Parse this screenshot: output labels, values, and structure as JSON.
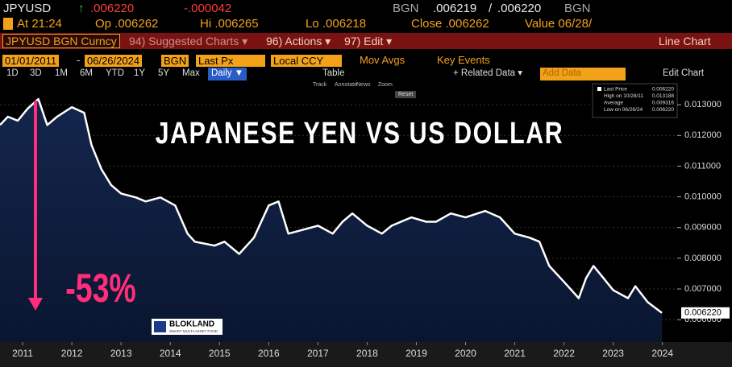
{
  "header": {
    "ticker": "JPYUSD",
    "arrow": "↑",
    "last": ".006220",
    "change": "-.000042",
    "source": "BGN",
    "bid": ".006219",
    "slash": "/",
    "ask": ".006220",
    "source2": "BGN",
    "time": "At 21:24",
    "open": "Op .006262",
    "high": "Hi .006265",
    "low": "Lo .006218",
    "close": "Close .006262",
    "value": "Value 06/28/"
  },
  "menu": {
    "security": "JPYUSD BGN Curncy",
    "suggested": "94) Suggested Charts ▾",
    "actions": "96) Actions ▾",
    "edit": "97) Edit ▾",
    "chart_type": "Line Chart"
  },
  "settings": {
    "start": "01/01/2011",
    "dash": "-",
    "end": "06/26/2024",
    "source": "BGN",
    "field": "Last Px",
    "currency": "Local CCY",
    "mov_avgs": "Mov Avgs",
    "key_events": "Key Events"
  },
  "toolbar": {
    "ranges": [
      "1D",
      "3D",
      "1M",
      "6M",
      "YTD",
      "1Y",
      "5Y",
      "Max"
    ],
    "frequency": "Daily ▼",
    "table": "Table",
    "related": "+ Related Data ▾",
    "add": "Add Data",
    "edit_chart": "Edit Chart"
  },
  "chart_tools": [
    "Track",
    "Annotate",
    "News",
    "Zoom"
  ],
  "reset": "Reset",
  "chart_data": {
    "type": "line",
    "title": "JAPANESE YEN VS US DOLLAR",
    "series": [
      {
        "name": "Last Price",
        "color": "#ffffff",
        "x": [
          2011.04,
          2011.2,
          2011.4,
          2011.6,
          2011.82,
          2012.0,
          2012.2,
          2012.5,
          2012.75,
          2012.9,
          2013.1,
          2013.3,
          2013.5,
          2013.8,
          2014.0,
          2014.3,
          2014.6,
          2014.85,
          2015.0,
          2015.4,
          2015.6,
          2015.9,
          2016.2,
          2016.5,
          2016.7,
          2016.9,
          2017.2,
          2017.5,
          2017.8,
          2018.0,
          2018.2,
          2018.5,
          2018.8,
          2019.0,
          2019.4,
          2019.7,
          2019.9,
          2020.2,
          2020.5,
          2020.9,
          2021.2,
          2021.5,
          2021.8,
          2022.0,
          2022.2,
          2022.5,
          2022.8,
          2022.95,
          2023.1,
          2023.3,
          2023.5,
          2023.8,
          2023.95,
          2024.2,
          2024.49
        ],
        "values": [
          0.01234,
          0.01261,
          0.01248,
          0.01287,
          0.013188,
          0.01234,
          0.01261,
          0.01292,
          0.01274,
          0.01169,
          0.0109,
          0.01038,
          0.01011,
          0.00998,
          0.00985,
          0.00998,
          0.00972,
          0.0088,
          0.00854,
          0.00841,
          0.00854,
          0.00814,
          0.00867,
          0.00972,
          0.00985,
          0.0088,
          0.00893,
          0.00906,
          0.0088,
          0.00919,
          0.00946,
          0.00906,
          0.0088,
          0.00906,
          0.00933,
          0.00919,
          0.00919,
          0.00946,
          0.00933,
          0.00954,
          0.00933,
          0.0088,
          0.00867,
          0.00854,
          0.00775,
          0.00723,
          0.0067,
          0.00736,
          0.00775,
          0.00736,
          0.00696,
          0.0067,
          0.00709,
          0.00657,
          0.00622
        ]
      }
    ],
    "xlim": [
      2011.04,
      2024.8
    ],
    "xticks": [
      {
        "value": 2011.5,
        "label": "2011"
      },
      {
        "value": 2012.5,
        "label": "2012"
      },
      {
        "value": 2013.5,
        "label": "2013"
      },
      {
        "value": 2014.5,
        "label": "2014"
      },
      {
        "value": 2015.5,
        "label": "2015"
      },
      {
        "value": 2016.5,
        "label": "2016"
      },
      {
        "value": 2017.5,
        "label": "2017"
      },
      {
        "value": 2018.5,
        "label": "2018"
      },
      {
        "value": 2019.5,
        "label": "2019"
      },
      {
        "value": 2020.5,
        "label": "2020"
      },
      {
        "value": 2021.5,
        "label": "2021"
      },
      {
        "value": 2022.5,
        "label": "2022"
      },
      {
        "value": 2023.5,
        "label": "2023"
      },
      {
        "value": 2024.5,
        "label": "2024"
      }
    ],
    "ylim": [
      0.00527,
      0.01379
    ],
    "yticks": [
      {
        "value": 0.006,
        "label": "0.006000"
      },
      {
        "value": 0.007,
        "label": "0.007000"
      },
      {
        "value": 0.008,
        "label": "0.008000"
      },
      {
        "value": 0.009,
        "label": "0.009000"
      },
      {
        "value": 0.01,
        "label": "0.010000"
      },
      {
        "value": 0.011,
        "label": "0.011000"
      },
      {
        "value": 0.012,
        "label": "0.012000"
      },
      {
        "value": 0.013,
        "label": "0.013000"
      }
    ],
    "grid": true,
    "stats": [
      {
        "label": "Last Price",
        "value": "0.006220"
      },
      {
        "label": "High on 10/28/11",
        "value": "0.013188"
      },
      {
        "label": "Average",
        "value": "0.009316"
      },
      {
        "label": "Low on 06/26/24",
        "value": "0.006220"
      }
    ],
    "annotations": {
      "change": "-53%",
      "last_price": "0.006220",
      "logo": "BLOKLAND",
      "logo_sub": "SMART MULTI-ASSET FUND"
    }
  }
}
